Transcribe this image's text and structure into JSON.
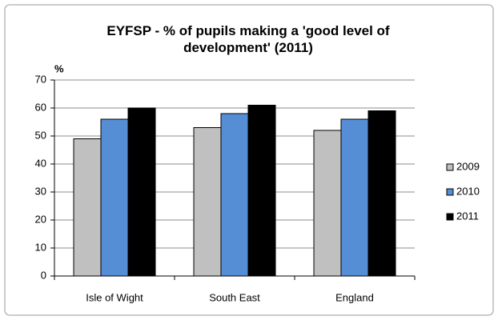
{
  "chart_data": {
    "type": "bar",
    "title": "EYFSP - % of pupils making a 'good level of development' (2011)",
    "y_label": "%",
    "categories": [
      "Isle of Wight",
      "South East",
      "England"
    ],
    "series": [
      {
        "name": "2009",
        "color": "#c0c0c0",
        "values": [
          49,
          53,
          52
        ]
      },
      {
        "name": "2010",
        "color": "#558ed5",
        "values": [
          56,
          58,
          56
        ]
      },
      {
        "name": "2011",
        "color": "#000000",
        "values": [
          60,
          61,
          59
        ]
      }
    ],
    "ylim": [
      0,
      70
    ],
    "yticks": [
      0,
      10,
      20,
      30,
      40,
      50,
      60,
      70
    ],
    "grid": true,
    "legend": "right"
  }
}
